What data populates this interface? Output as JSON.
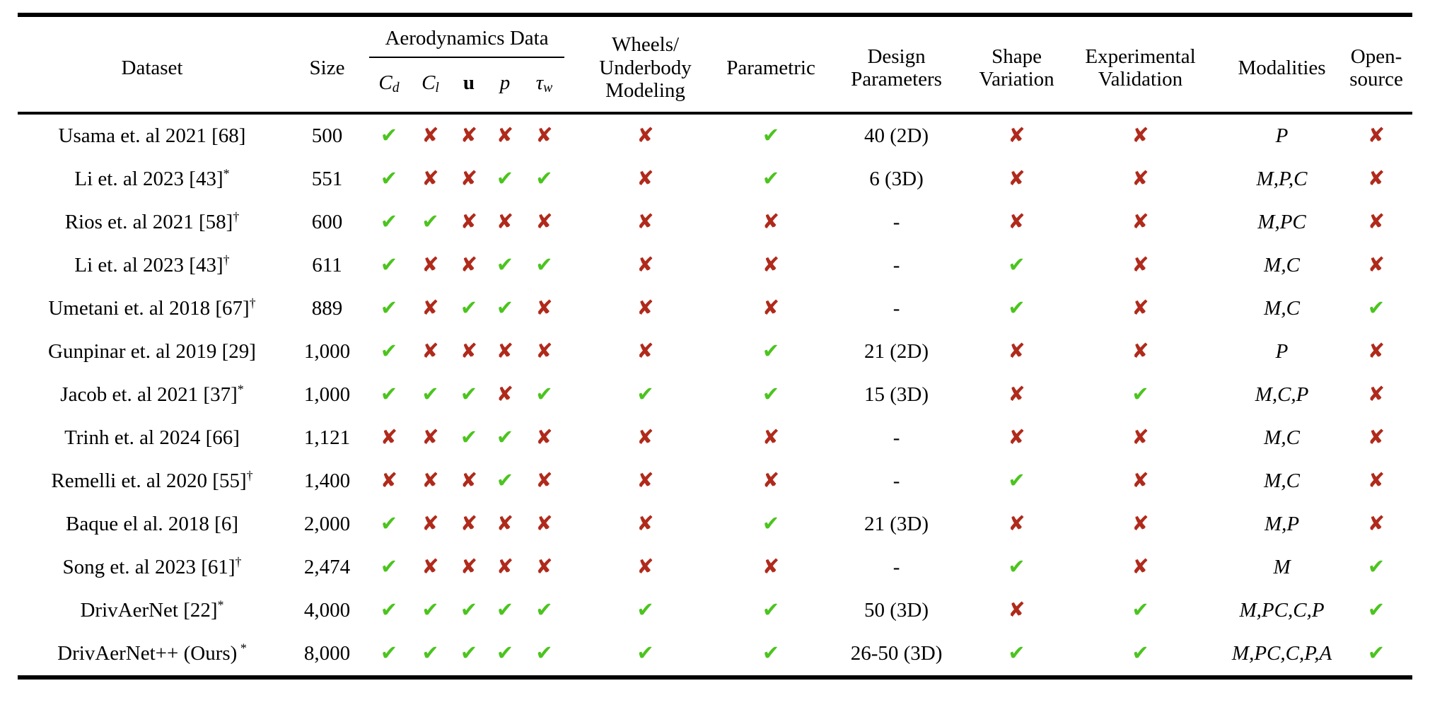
{
  "colors": {
    "check": "#4cc41f",
    "cross": "#b02a1b",
    "text": "#000000",
    "background": "#ffffff"
  },
  "icons": {
    "check": "✔",
    "cross": "✘"
  },
  "table": {
    "headers": {
      "dataset": "Dataset",
      "size": "Size",
      "aero_group": "Aerodynamics Data",
      "aero_cols": [
        {
          "key": "cd",
          "text": "C",
          "sub": "d",
          "style": "italic"
        },
        {
          "key": "cl",
          "text": "C",
          "sub": "l",
          "style": "italic"
        },
        {
          "key": "u",
          "text": "u",
          "sub": "",
          "style": "bold"
        },
        {
          "key": "p",
          "text": "p",
          "sub": "",
          "style": "italic"
        },
        {
          "key": "tau-w",
          "text": "τ",
          "sub": "w",
          "style": "italic"
        }
      ],
      "wheels": "Wheels/\nUnderbody\nModeling",
      "parametric": "Parametric",
      "design": "Design\nParameters",
      "shape": "Shape\nVariation",
      "experimental": "Experimental\nValidation",
      "modalities": "Modalities",
      "open_source": "Open-\nsource"
    },
    "rows": [
      {
        "dataset": "Usama et. al 2021 [68]",
        "marker": "",
        "size": "500",
        "aero": [
          "check",
          "cross",
          "cross",
          "cross",
          "cross"
        ],
        "wheels": "cross",
        "parametric": "check",
        "design_parameters": "40 (2D)",
        "shape_variation": "cross",
        "experimental_validation": "cross",
        "modalities": "P",
        "open_source": "cross"
      },
      {
        "dataset": "Li et. al 2023 [43]",
        "marker": "*",
        "size": "551",
        "aero": [
          "check",
          "cross",
          "cross",
          "check",
          "check"
        ],
        "wheels": "cross",
        "parametric": "check",
        "design_parameters": "6 (3D)",
        "shape_variation": "cross",
        "experimental_validation": "cross",
        "modalities": "M,P,C",
        "open_source": "cross"
      },
      {
        "dataset": "Rios et. al 2021 [58]",
        "marker": "†",
        "size": "600",
        "aero": [
          "check",
          "check",
          "cross",
          "cross",
          "cross"
        ],
        "wheels": "cross",
        "parametric": "cross",
        "design_parameters": "-",
        "shape_variation": "cross",
        "experimental_validation": "cross",
        "modalities": "M,PC",
        "open_source": "cross"
      },
      {
        "dataset": "Li et. al 2023 [43]",
        "marker": "†",
        "size": "611",
        "aero": [
          "check",
          "cross",
          "cross",
          "check",
          "check"
        ],
        "wheels": "cross",
        "parametric": "cross",
        "design_parameters": "-",
        "shape_variation": "check",
        "experimental_validation": "cross",
        "modalities": "M,C",
        "open_source": "cross"
      },
      {
        "dataset": "Umetani et. al 2018 [67]",
        "marker": "†",
        "size": "889",
        "aero": [
          "check",
          "cross",
          "check",
          "check",
          "cross"
        ],
        "wheels": "cross",
        "parametric": "cross",
        "design_parameters": "-",
        "shape_variation": "check",
        "experimental_validation": "cross",
        "modalities": "M,C",
        "open_source": "check"
      },
      {
        "dataset": "Gunpinar et. al 2019 [29]",
        "marker": "",
        "size": "1,000",
        "aero": [
          "check",
          "cross",
          "cross",
          "cross",
          "cross"
        ],
        "wheels": "cross",
        "parametric": "check",
        "design_parameters": "21 (2D)",
        "shape_variation": "cross",
        "experimental_validation": "cross",
        "modalities": "P",
        "open_source": "cross"
      },
      {
        "dataset": "Jacob et. al 2021 [37]",
        "marker": "*",
        "size": "1,000",
        "aero": [
          "check",
          "check",
          "check",
          "cross",
          "check"
        ],
        "wheels": "check",
        "parametric": "check",
        "design_parameters": "15 (3D)",
        "shape_variation": "cross",
        "experimental_validation": "check",
        "modalities": "M,C,P",
        "open_source": "cross"
      },
      {
        "dataset": "Trinh et. al 2024 [66]",
        "marker": "",
        "size": "1,121",
        "aero": [
          "cross",
          "cross",
          "check",
          "check",
          "cross"
        ],
        "wheels": "cross",
        "parametric": "cross",
        "design_parameters": "-",
        "shape_variation": "cross",
        "experimental_validation": "cross",
        "modalities": "M,C",
        "open_source": "cross"
      },
      {
        "dataset": "Remelli et. al 2020 [55]",
        "marker": "†",
        "size": "1,400",
        "aero": [
          "cross",
          "cross",
          "cross",
          "check",
          "cross"
        ],
        "wheels": "cross",
        "parametric": "cross",
        "design_parameters": "-",
        "shape_variation": "check",
        "experimental_validation": "cross",
        "modalities": "M,C",
        "open_source": "cross"
      },
      {
        "dataset": "Baque el al. 2018 [6]",
        "marker": "",
        "size": "2,000",
        "aero": [
          "check",
          "cross",
          "cross",
          "cross",
          "cross"
        ],
        "wheels": "cross",
        "parametric": "check",
        "design_parameters": "21 (3D)",
        "shape_variation": "cross",
        "experimental_validation": "cross",
        "modalities": "M,P",
        "open_source": "cross"
      },
      {
        "dataset": "Song et. al 2023 [61]",
        "marker": "†",
        "size": "2,474",
        "aero": [
          "check",
          "cross",
          "cross",
          "cross",
          "cross"
        ],
        "wheels": "cross",
        "parametric": "cross",
        "design_parameters": "-",
        "shape_variation": "check",
        "experimental_validation": "cross",
        "modalities": "M",
        "open_source": "check"
      },
      {
        "dataset": "DrivAerNet [22]",
        "marker": "*",
        "size": "4,000",
        "aero": [
          "check",
          "check",
          "check",
          "check",
          "check"
        ],
        "wheels": "check",
        "parametric": "check",
        "design_parameters": "50 (3D)",
        "shape_variation": "cross",
        "experimental_validation": "check",
        "modalities": "M,PC,C,P",
        "open_source": "check"
      },
      {
        "dataset": "DrivAerNet++ (Ours)",
        "marker": " *",
        "size": "8,000",
        "aero": [
          "check",
          "check",
          "check",
          "check",
          "check"
        ],
        "wheels": "check",
        "parametric": "check",
        "design_parameters": "26-50 (3D)",
        "shape_variation": "check",
        "experimental_validation": "check",
        "modalities": "M,PC,C,P,A",
        "open_source": "check"
      }
    ]
  }
}
